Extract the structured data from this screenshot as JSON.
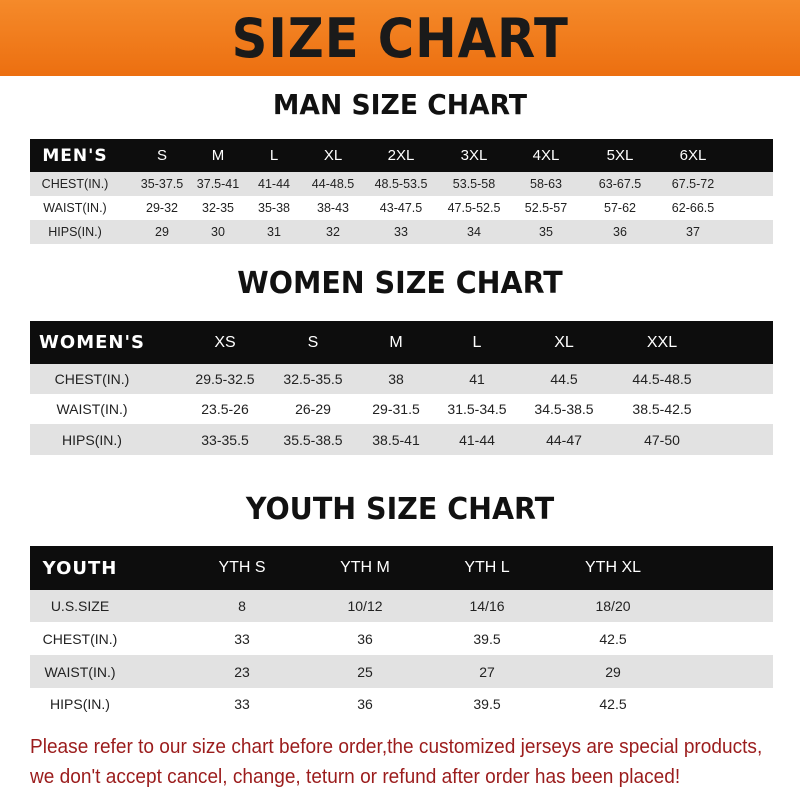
{
  "banner_title": "SIZE CHART",
  "men": {
    "title": "MAN SIZE CHART",
    "header": [
      "MEN'S",
      "S",
      "M",
      "L",
      "XL",
      "2XL",
      "3XL",
      "4XL",
      "5XL",
      "6XL"
    ],
    "rows": [
      [
        "CHEST(IN.)",
        "35-37.5",
        "37.5-41",
        "41-44",
        "44-48.5",
        "48.5-53.5",
        "53.5-58",
        "58-63",
        "63-67.5",
        "67.5-72"
      ],
      [
        "WAIST(IN.)",
        "29-32",
        "32-35",
        "35-38",
        "38-43",
        "43-47.5",
        "47.5-52.5",
        "52.5-57",
        "57-62",
        "62-66.5"
      ],
      [
        "HIPS(IN.)",
        "29",
        "30",
        "31",
        "32",
        "33",
        "34",
        "35",
        "36",
        "37"
      ]
    ]
  },
  "women": {
    "title": "WOMEN SIZE CHART",
    "header": [
      "WOMEN'S",
      "XS",
      "S",
      "M",
      "L",
      "XL",
      "XXL"
    ],
    "rows": [
      [
        "CHEST(IN.)",
        "29.5-32.5",
        "32.5-35.5",
        "38",
        "41",
        "44.5",
        "44.5-48.5"
      ],
      [
        "WAIST(IN.)",
        "23.5-26",
        "26-29",
        "29-31.5",
        "31.5-34.5",
        "34.5-38.5",
        "38.5-42.5"
      ],
      [
        "HIPS(IN.)",
        "33-35.5",
        "35.5-38.5",
        "38.5-41",
        "41-44",
        "44-47",
        "47-50"
      ]
    ]
  },
  "youth": {
    "title": "YOUTH SIZE CHART",
    "header": [
      "YOUTH",
      "YTH S",
      "YTH M",
      "YTH L",
      "YTH XL"
    ],
    "rows": [
      [
        "U.S.SIZE",
        "8",
        "10/12",
        "14/16",
        "18/20"
      ],
      [
        "CHEST(IN.)",
        "33",
        "36",
        "39.5",
        "42.5"
      ],
      [
        "WAIST(IN.)",
        "23",
        "25",
        "27",
        "29"
      ],
      [
        "HIPS(IN.)",
        "33",
        "36",
        "39.5",
        "42.5"
      ]
    ]
  },
  "notice": [
    "Please refer to our size chart before order,the customized jerseys are special products,",
    "we don't accept cancel, change, teturn or refund after order has been placed!"
  ],
  "colors": {
    "banner": "#ef7a1a",
    "header_row": "#0d0d0d",
    "stripe": "#e2e2e2",
    "notice": "#9b1c1c"
  }
}
